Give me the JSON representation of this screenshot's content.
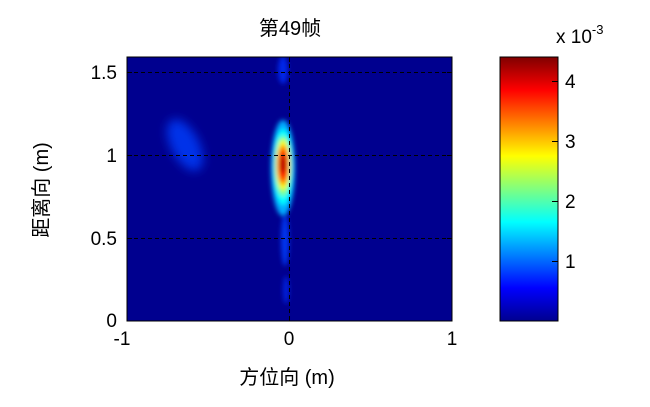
{
  "chart_data": [
    {
      "type": "heatmap",
      "title": "第49帧",
      "xlabel": "方位向 (m)",
      "ylabel": "距离向 (m)",
      "xlim": [
        -1,
        1
      ],
      "ylim": [
        0,
        1.6
      ],
      "xticks": [
        -1,
        0,
        1
      ],
      "xtick_labels": [
        "-1",
        "0",
        "1"
      ],
      "yticks": [
        0,
        0.5,
        1,
        1.5
      ],
      "ytick_labels": [
        "0",
        "0.5",
        "1",
        "1.5"
      ],
      "grid": true,
      "background_value": 0.0002,
      "colorscale": "jet",
      "colorbar": {
        "range": [
          0,
          0.0044
        ],
        "ticks": [
          0.001,
          0.002,
          0.003,
          0.004
        ],
        "tick_labels": [
          "1",
          "2",
          "3",
          "4"
        ],
        "exponent_label": "x 10",
        "exponent": "-3",
        "location": "right"
      },
      "features": [
        {
          "label": "main target",
          "x": -0.04,
          "y": 0.93,
          "peak": 0.0044
        },
        {
          "label": "secondary streak",
          "x": -0.62,
          "y": 1.05,
          "peak": 0.001
        }
      ]
    }
  ]
}
